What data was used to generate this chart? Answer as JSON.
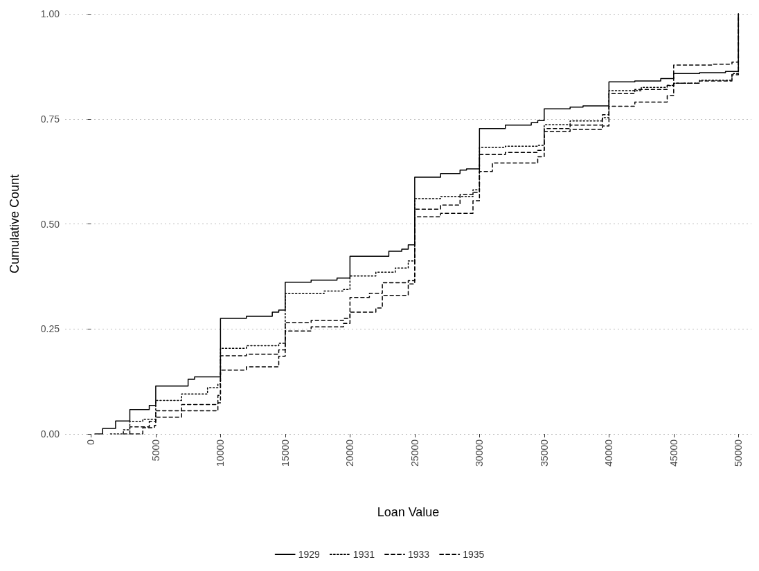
{
  "chart_data": {
    "type": "step",
    "xlabel": "Loan Value",
    "ylabel": "Cumulative Count",
    "xlim": [
      -2000,
      51000
    ],
    "ylim": [
      0,
      1
    ],
    "xticks": [
      0,
      5000,
      10000,
      15000,
      20000,
      25000,
      30000,
      35000,
      40000,
      45000,
      50000
    ],
    "yticks": [
      {
        "value": 0,
        "label": "0.00"
      },
      {
        "value": 0.25,
        "label": "0.25"
      },
      {
        "value": 0.5,
        "label": "0.50"
      },
      {
        "value": 0.75,
        "label": "0.75"
      },
      {
        "value": 1,
        "label": "1.00"
      }
    ],
    "grid": "y",
    "legend": "bottom",
    "marker": "none",
    "series": [
      {
        "name": "1929",
        "color": "#000000",
        "line_style": "solid",
        "x": [
          300,
          900,
          1900,
          3000,
          4500,
          5000,
          7500,
          8000,
          10000,
          12000,
          14000,
          14500,
          15000,
          17000,
          19000,
          20000,
          23000,
          24000,
          24500,
          25000,
          27000,
          28500,
          29000,
          30000,
          32000,
          34000,
          34500,
          35000,
          37000,
          38000,
          40000,
          42000,
          44000,
          45000,
          47000,
          49000,
          50000
        ],
        "values": [
          0,
          0.013,
          0.031,
          0.058,
          0.068,
          0.114,
          0.13,
          0.136,
          0.275,
          0.28,
          0.29,
          0.295,
          0.361,
          0.366,
          0.371,
          0.423,
          0.435,
          0.44,
          0.45,
          0.611,
          0.62,
          0.628,
          0.631,
          0.727,
          0.735,
          0.741,
          0.746,
          0.774,
          0.778,
          0.781,
          0.838,
          0.84,
          0.846,
          0.858,
          0.86,
          0.863,
          1.0
        ]
      },
      {
        "name": "1931",
        "color": "#000000",
        "line_style": "dotted",
        "x": [
          1500,
          2500,
          3000,
          4000,
          5000,
          7000,
          9000,
          9800,
          10000,
          12000,
          14500,
          15000,
          18000,
          19500,
          20000,
          22000,
          23500,
          24500,
          25000,
          27000,
          29500,
          30000,
          32000,
          34500,
          35000,
          37000,
          39500,
          40000,
          42500,
          44500,
          45000,
          47000,
          49500,
          50000
        ],
        "values": [
          0,
          0.01,
          0.03,
          0.035,
          0.08,
          0.095,
          0.11,
          0.119,
          0.204,
          0.21,
          0.216,
          0.334,
          0.34,
          0.344,
          0.376,
          0.385,
          0.395,
          0.412,
          0.56,
          0.565,
          0.581,
          0.682,
          0.685,
          0.687,
          0.736,
          0.745,
          0.753,
          0.817,
          0.825,
          0.829,
          0.835,
          0.842,
          0.858,
          1.0
        ]
      },
      {
        "name": "1933",
        "color": "#000000",
        "line_style": "dashed",
        "x": [
          2500,
          3000,
          4500,
          5000,
          7000,
          9800,
          10000,
          12000,
          14500,
          15000,
          17000,
          19500,
          20000,
          21500,
          22500,
          24500,
          25000,
          27000,
          28500,
          29500,
          30000,
          32000,
          34500,
          35000,
          37000,
          39500,
          40000,
          42000,
          44500,
          45000,
          47000,
          49500,
          50000
        ],
        "values": [
          0,
          0.017,
          0.03,
          0.055,
          0.07,
          0.092,
          0.186,
          0.19,
          0.2,
          0.265,
          0.27,
          0.275,
          0.325,
          0.335,
          0.36,
          0.365,
          0.535,
          0.545,
          0.57,
          0.575,
          0.665,
          0.67,
          0.675,
          0.727,
          0.735,
          0.76,
          0.81,
          0.82,
          0.83,
          0.835,
          0.84,
          0.855,
          1.0
        ]
      },
      {
        "name": "1935",
        "color": "#000000",
        "line_style": "dashed",
        "x": [
          3000,
          4000,
          4900,
          5000,
          7000,
          9800,
          10000,
          12000,
          14500,
          15000,
          17000,
          19500,
          20000,
          22000,
          22500,
          24500,
          25000,
          27000,
          29500,
          30000,
          31000,
          34500,
          35000,
          37000,
          39500,
          40000,
          42000,
          44500,
          45000,
          48000,
          49500,
          50000
        ],
        "values": [
          0,
          0.015,
          0.02,
          0.04,
          0.055,
          0.074,
          0.152,
          0.16,
          0.185,
          0.245,
          0.255,
          0.263,
          0.29,
          0.3,
          0.33,
          0.357,
          0.517,
          0.525,
          0.555,
          0.625,
          0.645,
          0.66,
          0.72,
          0.725,
          0.733,
          0.78,
          0.79,
          0.805,
          0.878,
          0.88,
          0.885,
          1.0
        ]
      }
    ]
  }
}
